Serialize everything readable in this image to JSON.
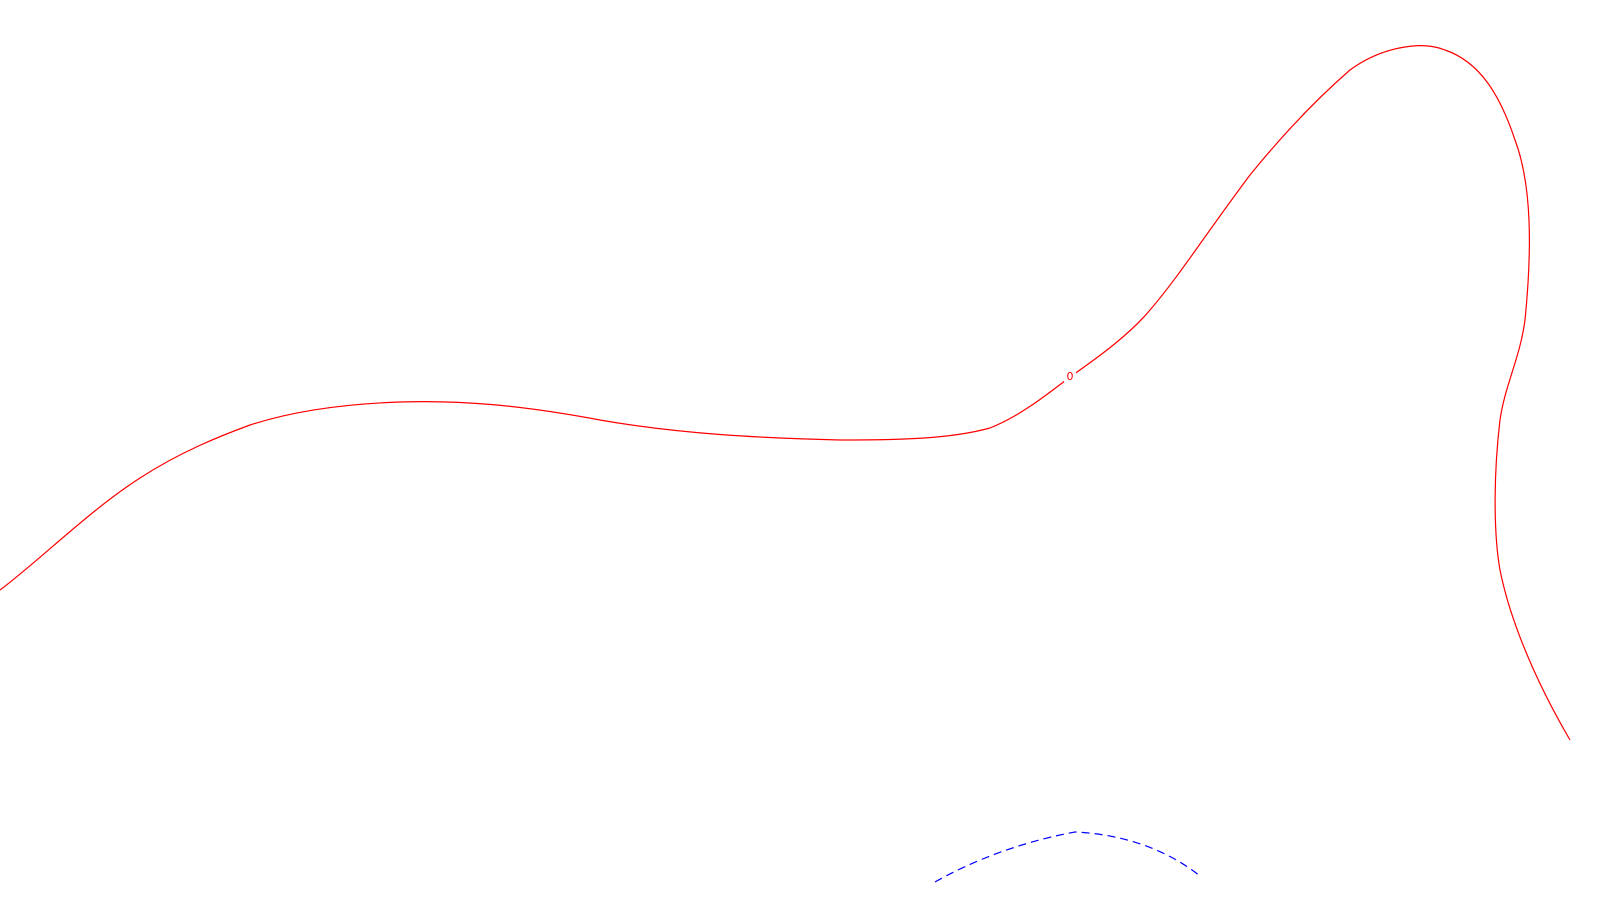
{
  "contours": {
    "primary": {
      "label": "0",
      "color": "#ff0000",
      "style": "solid"
    },
    "secondary": {
      "color": "#0000ff",
      "style": "dashed"
    }
  }
}
